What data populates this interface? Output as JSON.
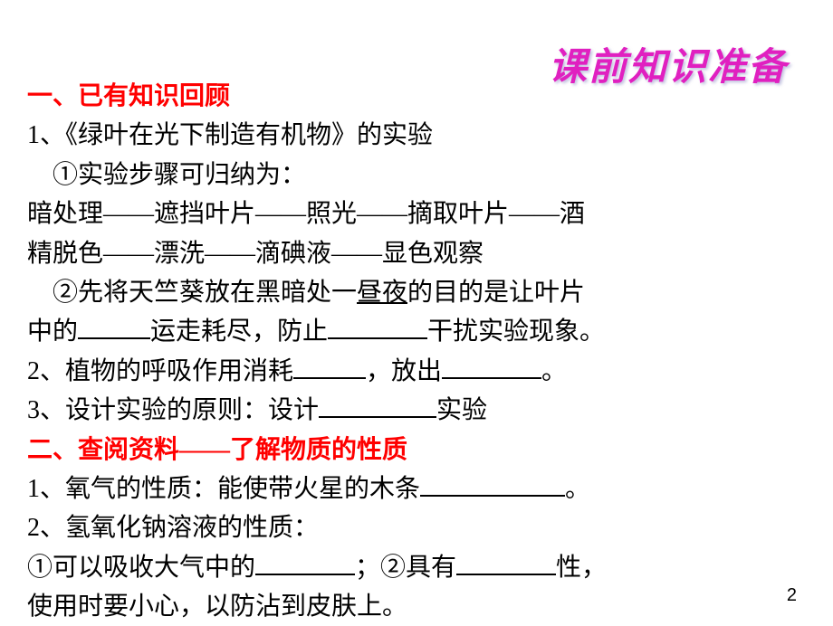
{
  "title_decor": "课前知识准备",
  "section1_heading": "一、已有知识回顾",
  "s1_item1_lead": "1、《绿叶在光下制造有机物》的实验",
  "s1_item1_sub1": "　①实验步骤可归纳为：",
  "s1_steps_l1": "暗处理——遮挡叶片——照光——摘取叶片——酒",
  "s1_steps_l2": "精脱色——漂洗——滴碘液——显色观察",
  "s1_item1_sub2_a": "　②先将天竺葵放在黑暗处一",
  "s1_item1_sub2_u": "昼夜",
  "s1_item1_sub2_b": "的目的是让叶片",
  "s1_item1_sub2_c": "中的",
  "s1_item1_sub2_d": "运走耗尽，防止",
  "s1_item1_sub2_e": "干扰实验现象。",
  "s1_item2_a": "2、植物的呼吸作用消耗",
  "s1_item2_b": "，放出",
  "s1_item2_c": "。",
  "s1_item3_a": "3、设计实验的原则：设计",
  "s1_item3_b": "实验",
  "section2_heading": "二、查阅资料——了解物质的性质",
  "s2_item1_a": "1、氧气的性质：能使带火星的木条",
  "s2_item1_b": "。",
  "s2_item2_lead": "2、氢氧化钠溶液的性质：",
  "s2_item2_a": "①可以吸收大气中的",
  "s2_item2_b": "；②具有",
  "s2_item2_c": "性，",
  "s2_item2_d": "使用时要小心，以防沾到皮肤上。",
  "page_number": "2",
  "colors": {
    "heading_red": "#ff0000",
    "title_magenta": "#e020c0",
    "text_black": "#000000",
    "background": "#ffffff"
  },
  "fontsizes": {
    "body": 28,
    "title_decor": 42,
    "page_num": 20
  }
}
